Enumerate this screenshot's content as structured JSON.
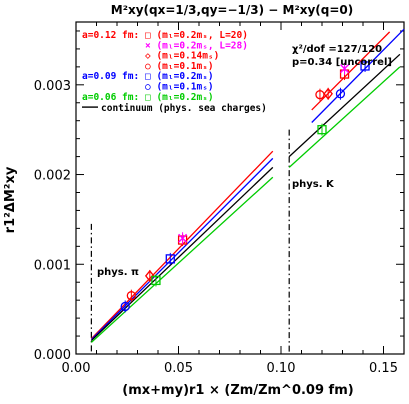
{
  "chart_data": {
    "type": "scatter",
    "title": "M²xy(qx=1/3,qy=−1/3) − M²xy(q=0)",
    "xlabel": "(mx+my)r1 × (Zm/Zm^0.09 fm)",
    "ylabel": "r1²ΔM²xy",
    "xlim": [
      0.0,
      0.16
    ],
    "ylim": [
      0.0,
      0.0037
    ],
    "x_ticks": [
      "0.00",
      "0.05",
      "0.10",
      "0.15"
    ],
    "y_ticks": [
      "0.000",
      "0.001",
      "0.002",
      "0.003"
    ],
    "colors": {
      "a012": "#ff0000",
      "a012_l28": "#ff00ff",
      "a009": "#0000ff",
      "a006": "#00cc00",
      "continuum": "#000000"
    },
    "legend": {
      "groups": [
        {
          "label": "a=0.12 fm:",
          "color": "#ff0000",
          "entries": [
            {
              "text": "□ (mₗ=0.2mₛ, L=20)",
              "color": "#ff0000"
            },
            {
              "text": "× (mₗ=0.2mₛ, L=28)",
              "color": "#ff00ff"
            },
            {
              "text": "◇ (mₗ=0.14mₛ)",
              "color": "#ff0000"
            },
            {
              "text": "○ (mₗ=0.1mₛ)",
              "color": "#ff0000"
            }
          ]
        },
        {
          "label": "a=0.09 fm:",
          "color": "#0000ff",
          "entries": [
            {
              "text": "□ (mₗ=0.2mₛ)",
              "color": "#0000ff"
            },
            {
              "text": "○ (mₗ=0.1mₛ)",
              "color": "#0000ff"
            }
          ]
        },
        {
          "label": "a=0.06 fm:",
          "color": "#00cc00",
          "entries": [
            {
              "text": "□ (mₗ=0.2mₛ)",
              "color": "#00cc00"
            }
          ]
        }
      ],
      "continuum_label": "continuum (phys. sea charges)"
    },
    "fit_text": [
      "χ²/dof =127/120",
      "p=0.34 [uncorrel]"
    ],
    "annotations": {
      "phys_pi": {
        "text": "phys. π",
        "x": 0.0075
      },
      "phys_k": {
        "text": "phys. K",
        "x": 0.104
      }
    },
    "series": [
      {
        "marker": "square",
        "color": "#ff0000",
        "points": [
          [
            0.052,
            0.00127
          ],
          [
            0.131,
            0.00312
          ]
        ]
      },
      {
        "marker": "cross",
        "color": "#ff00ff",
        "points": [
          [
            0.052,
            0.00129
          ],
          [
            0.131,
            0.00318
          ]
        ]
      },
      {
        "marker": "diamond",
        "color": "#ff0000",
        "points": [
          [
            0.036,
            0.00087
          ],
          [
            0.123,
            0.0029
          ]
        ]
      },
      {
        "marker": "circle",
        "color": "#ff0000",
        "points": [
          [
            0.027,
            0.00065
          ],
          [
            0.119,
            0.00289
          ]
        ]
      },
      {
        "marker": "square",
        "color": "#0000ff",
        "points": [
          [
            0.046,
            0.00106
          ],
          [
            0.141,
            0.00321
          ]
        ]
      },
      {
        "marker": "circle",
        "color": "#0000ff",
        "points": [
          [
            0.024,
            0.00053
          ],
          [
            0.129,
            0.0029
          ]
        ]
      },
      {
        "marker": "square",
        "color": "#00cc00",
        "points": [
          [
            0.039,
            0.00082
          ],
          [
            0.12,
            0.0025
          ]
        ]
      }
    ],
    "fit_lines": [
      {
        "color": "#ff0000",
        "segments": [
          [
            [
              0.0075,
              0.00017
            ],
            [
              0.096,
              0.00226
            ]
          ],
          [
            [
              0.115,
              0.00272
            ],
            [
              0.153,
              0.00359
            ]
          ]
        ]
      },
      {
        "color": "#0000ff",
        "segments": [
          [
            [
              0.0075,
              0.00016
            ],
            [
              0.096,
              0.00218
            ]
          ],
          [
            [
              0.115,
              0.00258
            ],
            [
              0.16,
              0.00362
            ]
          ]
        ]
      },
      {
        "color": "#000000",
        "segments": [
          [
            [
              0.0075,
              0.00015
            ],
            [
              0.096,
              0.00208
            ]
          ],
          [
            [
              0.104,
              0.0022
            ],
            [
              0.158,
              0.00334
            ]
          ]
        ]
      },
      {
        "color": "#00cc00",
        "segments": [
          [
            [
              0.0075,
              0.00013
            ],
            [
              0.096,
              0.00197
            ]
          ],
          [
            [
              0.104,
              0.00208
            ],
            [
              0.158,
              0.0032
            ]
          ]
        ]
      }
    ]
  }
}
